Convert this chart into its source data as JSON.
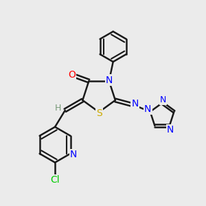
{
  "bg_color": "#ebebeb",
  "bond_color": "#1a1a1a",
  "bond_width": 1.8,
  "figsize": [
    3.0,
    3.0
  ],
  "dpi": 100,
  "atom_colors": {
    "O": "#ff0000",
    "N": "#0000ff",
    "S": "#ccaa00",
    "Cl": "#00cc00",
    "H": "#888888",
    "C": "#1a1a1a"
  }
}
